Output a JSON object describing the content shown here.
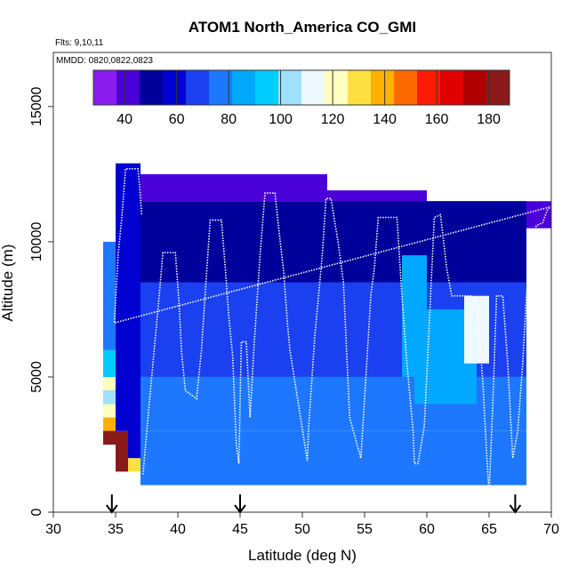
{
  "chart_data": {
    "type": "heatmap",
    "title": "ATOM1 North_America CO_GMI",
    "subtitle_flights": "Flts: 9,10,11",
    "subtitle_dates": "MMDD: 0820,0822,0823",
    "xlabel": "Latitude (deg N)",
    "ylabel": "Altitude (m)",
    "xlim": [
      30,
      70
    ],
    "ylim": [
      0,
      17000
    ],
    "x_ticks": [
      "30",
      "35",
      "40",
      "45",
      "50",
      "55",
      "60",
      "65",
      "70"
    ],
    "y_ticks": [
      "0",
      "5000",
      "10000",
      "15000"
    ],
    "colorbar": {
      "range": [
        28,
        188
      ],
      "ticks": [
        "40",
        "60",
        "80",
        "100",
        "120",
        "140",
        "160",
        "180"
      ],
      "colors": [
        "#8b1cf0",
        "#4a00d8",
        "#00009a",
        "#0000d0",
        "#1a40f0",
        "#1e78ff",
        "#00a8ff",
        "#00ccff",
        "#9fe0ff",
        "#eef8ff",
        "#ffffc0",
        "#ffe040",
        "#ffb000",
        "#ff6a00",
        "#ff1a00",
        "#e00000",
        "#b00000",
        "#8a1a1a"
      ]
    },
    "marker_latitudes": [
      34.7,
      45,
      67.1
    ],
    "cells": [
      {
        "lat0": 34,
        "lat1": 35,
        "alt0": 2500,
        "alt1": 10000,
        "co": 75
      },
      {
        "lat0": 34,
        "lat1": 35,
        "alt0": 5000,
        "alt1": 6000,
        "co": 92
      },
      {
        "lat0": 34,
        "lat1": 35,
        "alt0": 4500,
        "alt1": 5000,
        "co": 118
      },
      {
        "lat0": 34,
        "lat1": 35,
        "alt0": 4000,
        "alt1": 4500,
        "co": 104
      },
      {
        "lat0": 34,
        "lat1": 35,
        "alt0": 3500,
        "alt1": 4000,
        "co": 125
      },
      {
        "lat0": 34,
        "lat1": 35,
        "alt0": 3000,
        "alt1": 3500,
        "co": 137
      },
      {
        "lat0": 34,
        "lat1": 35,
        "alt0": 2500,
        "alt1": 3000,
        "co": 170
      },
      {
        "lat0": 34,
        "lat1": 35,
        "alt0": 2500,
        "alt1": 3000,
        "co": 185
      },
      {
        "lat0": 35,
        "lat1": 36,
        "alt0": 1500,
        "alt1": 3000,
        "co": 185
      },
      {
        "lat0": 35,
        "lat1": 36,
        "alt0": 3000,
        "alt1": 12900,
        "co": 60
      },
      {
        "lat0": 36,
        "lat1": 37,
        "alt0": 1500,
        "alt1": 2000,
        "co": 128
      },
      {
        "lat0": 36,
        "lat1": 37,
        "alt0": 2000,
        "alt1": 12900,
        "co": 58
      },
      {
        "lat0": 37,
        "lat1": 52,
        "alt0": 11500,
        "alt1": 12500,
        "co": 42
      },
      {
        "lat0": 52,
        "lat1": 60,
        "alt0": 11000,
        "alt1": 11900,
        "co": 42
      },
      {
        "lat0": 60,
        "lat1": 70,
        "alt0": 10500,
        "alt1": 11500,
        "co": 40
      },
      {
        "lat0": 56,
        "lat1": 59,
        "alt0": 10400,
        "alt1": 11000,
        "co": 32
      },
      {
        "lat0": 37,
        "lat1": 68,
        "alt0": 8500,
        "alt1": 11500,
        "co": 52
      },
      {
        "lat0": 37,
        "lat1": 68,
        "alt0": 5000,
        "alt1": 8500,
        "co": 65
      },
      {
        "lat0": 37,
        "lat1": 68,
        "alt0": 3000,
        "alt1": 5000,
        "co": 73
      },
      {
        "lat0": 37,
        "lat1": 68,
        "alt0": 1000,
        "alt1": 3000,
        "co": 80
      },
      {
        "lat0": 59,
        "lat1": 64,
        "alt0": 4000,
        "alt1": 7500,
        "co": 88
      },
      {
        "lat0": 63,
        "lat1": 65,
        "alt0": 5500,
        "alt1": 8000,
        "co": 110
      },
      {
        "lat0": 58,
        "lat1": 60,
        "alt0": 5000,
        "alt1": 9500,
        "co": 82
      }
    ],
    "flight_track": [
      [
        37.2,
        1400
      ],
      [
        37.6,
        3500
      ],
      [
        38.0,
        5500
      ],
      [
        38.5,
        8000
      ],
      [
        38.8,
        9600
      ],
      [
        39.8,
        9600
      ],
      [
        40.1,
        7700
      ],
      [
        40.3,
        5900
      ],
      [
        40.6,
        4500
      ],
      [
        41.5,
        4200
      ],
      [
        41.9,
        6000
      ],
      [
        42.3,
        8800
      ],
      [
        42.6,
        10800
      ],
      [
        43.5,
        10800
      ],
      [
        43.8,
        9100
      ],
      [
        44.1,
        7200
      ],
      [
        44.4,
        5800
      ],
      [
        44.7,
        2500
      ],
      [
        44.9,
        1800
      ],
      [
        45.1,
        6300
      ],
      [
        45.5,
        6300
      ],
      [
        45.8,
        3500
      ],
      [
        46.1,
        6000
      ],
      [
        46.6,
        9500
      ],
      [
        47.0,
        11800
      ],
      [
        47.8,
        11800
      ],
      [
        48.1,
        10500
      ],
      [
        48.5,
        8900
      ],
      [
        48.8,
        7000
      ],
      [
        49.0,
        6000
      ],
      [
        50.4,
        1900
      ],
      [
        50.5,
        3100
      ],
      [
        51.0,
        6500
      ],
      [
        51.6,
        9500
      ],
      [
        51.9,
        11600
      ],
      [
        52.3,
        11600
      ],
      [
        52.9,
        9900
      ],
      [
        53.3,
        8500
      ],
      [
        53.8,
        3500
      ],
      [
        54.7,
        2000
      ],
      [
        55.0,
        4200
      ],
      [
        55.5,
        8000
      ],
      [
        55.8,
        9100
      ],
      [
        56.1,
        10900
      ],
      [
        57.6,
        10900
      ],
      [
        58.0,
        8000
      ],
      [
        58.4,
        5500
      ],
      [
        58.9,
        3000
      ],
      [
        59.0,
        1800
      ],
      [
        59.3,
        1800
      ],
      [
        59.8,
        3200
      ],
      [
        60.2,
        7000
      ],
      [
        60.6,
        10900
      ],
      [
        61.1,
        11000
      ],
      [
        61.6,
        9000
      ],
      [
        62.0,
        8000
      ],
      [
        63.5,
        8000
      ],
      [
        64.0,
        7800
      ],
      [
        64.5,
        4800
      ],
      [
        64.8,
        2200
      ],
      [
        65.0,
        700
      ],
      [
        65.3,
        4000
      ],
      [
        65.6,
        8000
      ],
      [
        66.1,
        8000
      ],
      [
        66.5,
        5500
      ],
      [
        66.9,
        2000
      ],
      [
        67.3,
        3000
      ],
      [
        67.7,
        5500
      ],
      [
        68.0,
        8000
      ],
      [
        68.4,
        10100
      ],
      [
        68.8,
        10600
      ],
      [
        69.3,
        10700
      ],
      [
        69.7,
        11200
      ],
      [
        70.0,
        11300
      ],
      [
        34.9,
        7000
      ],
      [
        35.2,
        9500
      ],
      [
        35.5,
        10900
      ],
      [
        35.8,
        12700
      ],
      [
        36.8,
        12700
      ],
      [
        36.9,
        12200
      ],
      [
        37.1,
        11000
      ]
    ]
  }
}
